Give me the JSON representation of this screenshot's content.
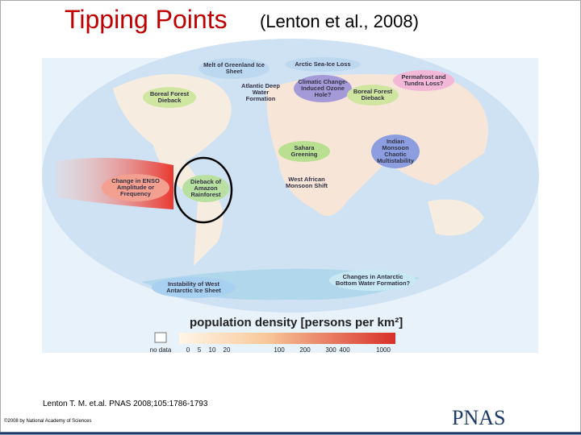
{
  "header": {
    "title": "Tipping Points",
    "subtitle": "(Lenton et al., 2008)"
  },
  "map": {
    "labels": [
      "Melt of Greenland Ice Sheet",
      "Arctic Sea-Ice Loss",
      "Permafrost and Tundra Loss?",
      "Boreal Forest Dieback",
      "Atlantic Deep Water Formation",
      "Climatic Change-Induced Ozone Hole?",
      "Boreal Forest Dieback",
      "Indian Monsoon Chaotic Multistability",
      "Sahara Greening",
      "West African Monsoon Shift",
      "Change in ENSO Amplitude or Frequency",
      "Dieback of Amazon Rainforest",
      "Instability of West Antarctic Ice Sheet",
      "Changes in Antarctic Bottom Water Formation?"
    ],
    "legend": {
      "title": "population density [persons per km²]",
      "ticks": [
        "no data",
        0,
        5,
        10,
        20,
        100,
        200,
        300,
        400,
        1000
      ]
    }
  },
  "footer": {
    "citation": "Lenton T. M. et.al. PNAS 2008;105:1786-1793",
    "copyright": "©2008 by National Academy of Sciences",
    "logo": "PNAS"
  }
}
